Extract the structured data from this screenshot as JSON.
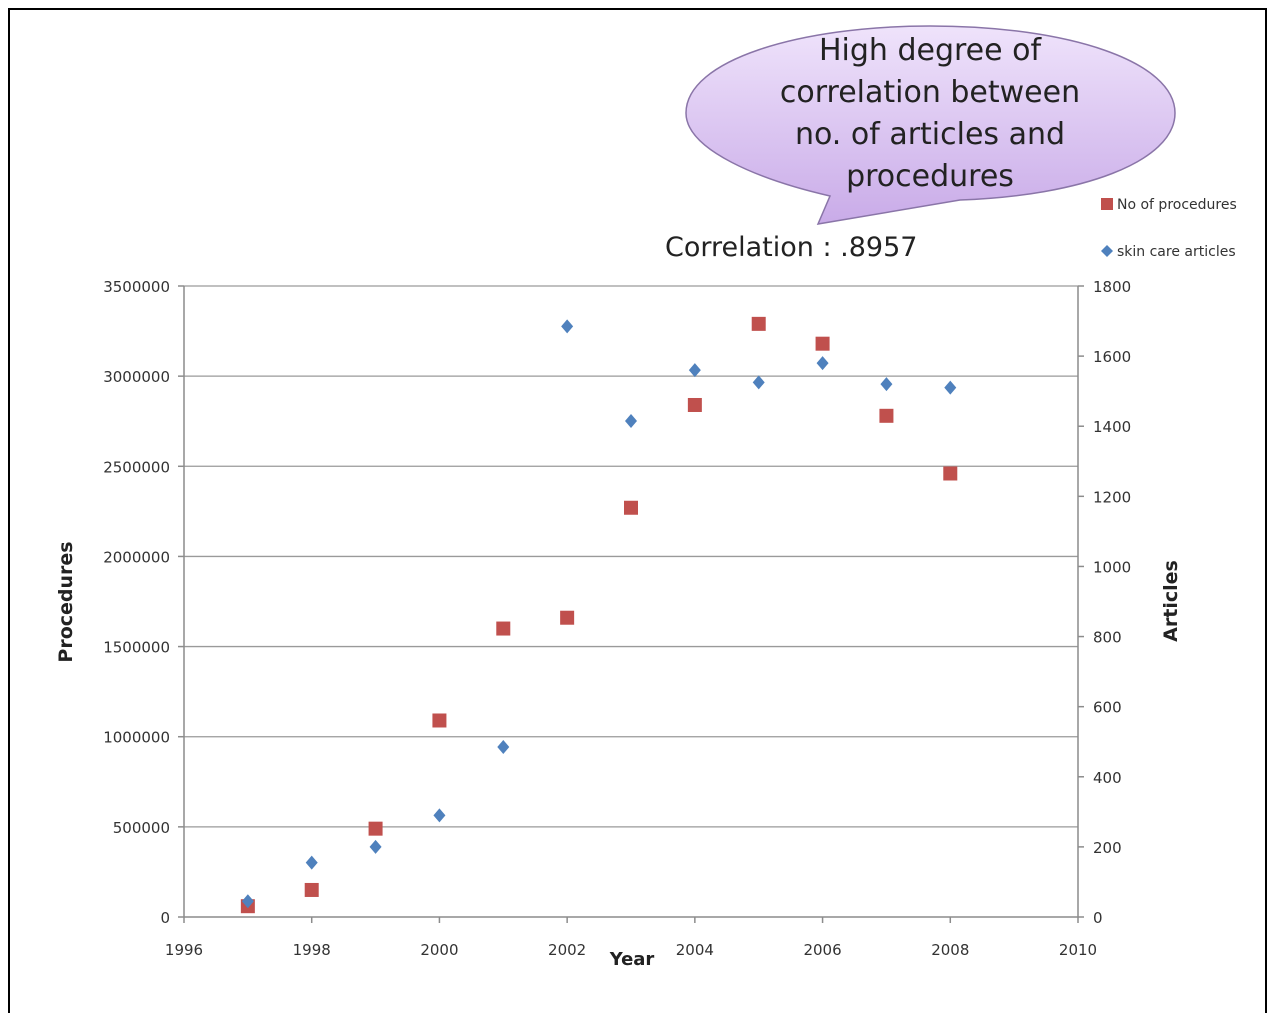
{
  "annotation": {
    "callout_lines": [
      "High degree of",
      "correlation between",
      "no. of articles and",
      "procedures"
    ],
    "correlation_text": "Correlation :  .8957"
  },
  "chart_data": {
    "type": "scatter",
    "title": "",
    "xlabel": "Year",
    "ylabel": "Procedures",
    "y2label": "Articles",
    "xlim": [
      1996,
      2010
    ],
    "xticks": [
      1996,
      1998,
      2000,
      2002,
      2004,
      2006,
      2008,
      2010
    ],
    "ylim": [
      0,
      3500000
    ],
    "yticks": [
      0,
      500000,
      1000000,
      1500000,
      2000000,
      2500000,
      3000000,
      3500000
    ],
    "y2lim": [
      0,
      1800
    ],
    "y2ticks": [
      0,
      200,
      400,
      600,
      800,
      1000,
      1200,
      1400,
      1600,
      1800
    ],
    "grid": true,
    "legend_position": "top-right",
    "series": [
      {
        "name": "No of procedures",
        "axis": "left",
        "marker": "square",
        "color": "#c0504d",
        "x": [
          1997,
          1998,
          1999,
          2000,
          2001,
          2002,
          2003,
          2004,
          2005,
          2006,
          2007,
          2008
        ],
        "y": [
          60000,
          150000,
          490000,
          1090000,
          1600000,
          1660000,
          2270000,
          2840000,
          3290000,
          3180000,
          2780000,
          2460000
        ]
      },
      {
        "name": "skin care articles",
        "axis": "right",
        "marker": "diamond",
        "color": "#4f81bd",
        "x": [
          1997,
          1998,
          1999,
          2000,
          2001,
          2002,
          2003,
          2004,
          2005,
          2006,
          2007,
          2008
        ],
        "y": [
          45,
          155,
          200,
          290,
          485,
          1685,
          1415,
          1560,
          1525,
          1580,
          1520,
          1510
        ]
      }
    ]
  }
}
